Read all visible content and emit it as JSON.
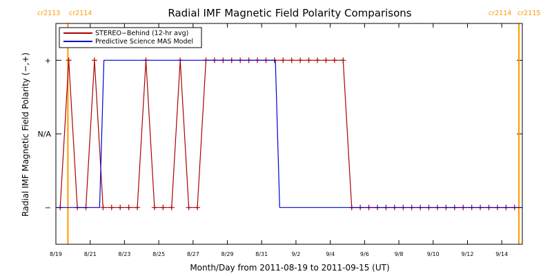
{
  "chart_data": {
    "type": "line",
    "title": "Radial IMF Magnetic Field Polarity Comparisons",
    "xlabel": "Month/Day from 2011-08-19 to 2011-09-15 (UT)",
    "ylabel": "Radial IMF Magnetic Field Polarity (−,+)",
    "x_unit": "days from 2011-08-19",
    "xlim": [
      0,
      27.2
    ],
    "ylim": [
      -1.5,
      1.5
    ],
    "x_ticks": [
      {
        "x": 0,
        "label": "8/19"
      },
      {
        "x": 2,
        "label": "8/21"
      },
      {
        "x": 4,
        "label": "8/23"
      },
      {
        "x": 6,
        "label": "8/25"
      },
      {
        "x": 8,
        "label": "8/27"
      },
      {
        "x": 10,
        "label": "8/29"
      },
      {
        "x": 12,
        "label": "8/31"
      },
      {
        "x": 14,
        "label": "9/2"
      },
      {
        "x": 16,
        "label": "9/4"
      },
      {
        "x": 18,
        "label": "9/6"
      },
      {
        "x": 20,
        "label": "9/8"
      },
      {
        "x": 22,
        "label": "9/10"
      },
      {
        "x": 24,
        "label": "9/12"
      },
      {
        "x": 26,
        "label": "9/14"
      }
    ],
    "y_ticks": [
      {
        "y": 1,
        "label": "+"
      },
      {
        "y": 0,
        "label": "N/A"
      },
      {
        "y": -1,
        "label": "−"
      }
    ],
    "rotations": [
      {
        "x": 0.7,
        "left_label": "cr2113",
        "right_label": "cr2114",
        "color": "#ff9900"
      },
      {
        "x": 27.0,
        "left_label": "cr2114",
        "right_label": "cr2115",
        "color": "#ff9900"
      }
    ],
    "legend": {
      "position": "top-left"
    },
    "series": [
      {
        "name": "STEREO−Behind (12-hr avg)",
        "color": "#aa0000",
        "markers": true,
        "x": [
          0.25,
          0.75,
          1.25,
          1.75,
          2.25,
          2.75,
          3.25,
          3.75,
          4.25,
          4.75,
          5.25,
          5.75,
          6.25,
          6.75,
          7.25,
          7.75,
          8.25,
          8.75,
          9.25,
          9.75,
          10.25,
          10.75,
          11.25,
          11.75,
          12.25,
          12.75,
          13.25,
          13.75,
          14.25,
          14.75,
          15.25,
          15.75,
          16.25,
          16.75,
          17.25,
          17.75,
          18.25,
          18.75,
          19.25,
          19.75,
          20.25,
          20.75,
          21.25,
          21.75,
          22.25,
          22.75,
          23.25,
          23.75,
          24.25,
          24.75,
          25.25,
          25.75,
          26.25,
          26.75
        ],
        "y": [
          -1,
          1,
          -1,
          -1,
          1,
          -1,
          -1,
          -1,
          -1,
          -1,
          1,
          -1,
          -1,
          -1,
          1,
          -1,
          -1,
          1,
          1,
          1,
          1,
          1,
          1,
          1,
          1,
          1,
          1,
          1,
          1,
          1,
          1,
          1,
          1,
          1,
          -1,
          -1,
          -1,
          -1,
          -1,
          -1,
          -1,
          -1,
          -1,
          -1,
          -1,
          -1,
          -1,
          -1,
          -1,
          -1,
          -1,
          -1,
          -1,
          -1
        ]
      },
      {
        "name": "Predictive Science MAS Model",
        "color": "#0000cc",
        "markers": false,
        "x": [
          0,
          2.55,
          2.8,
          12.8,
          13.05,
          27.2
        ],
        "y": [
          -1,
          -1,
          1,
          1,
          -1,
          -1
        ]
      }
    ]
  }
}
